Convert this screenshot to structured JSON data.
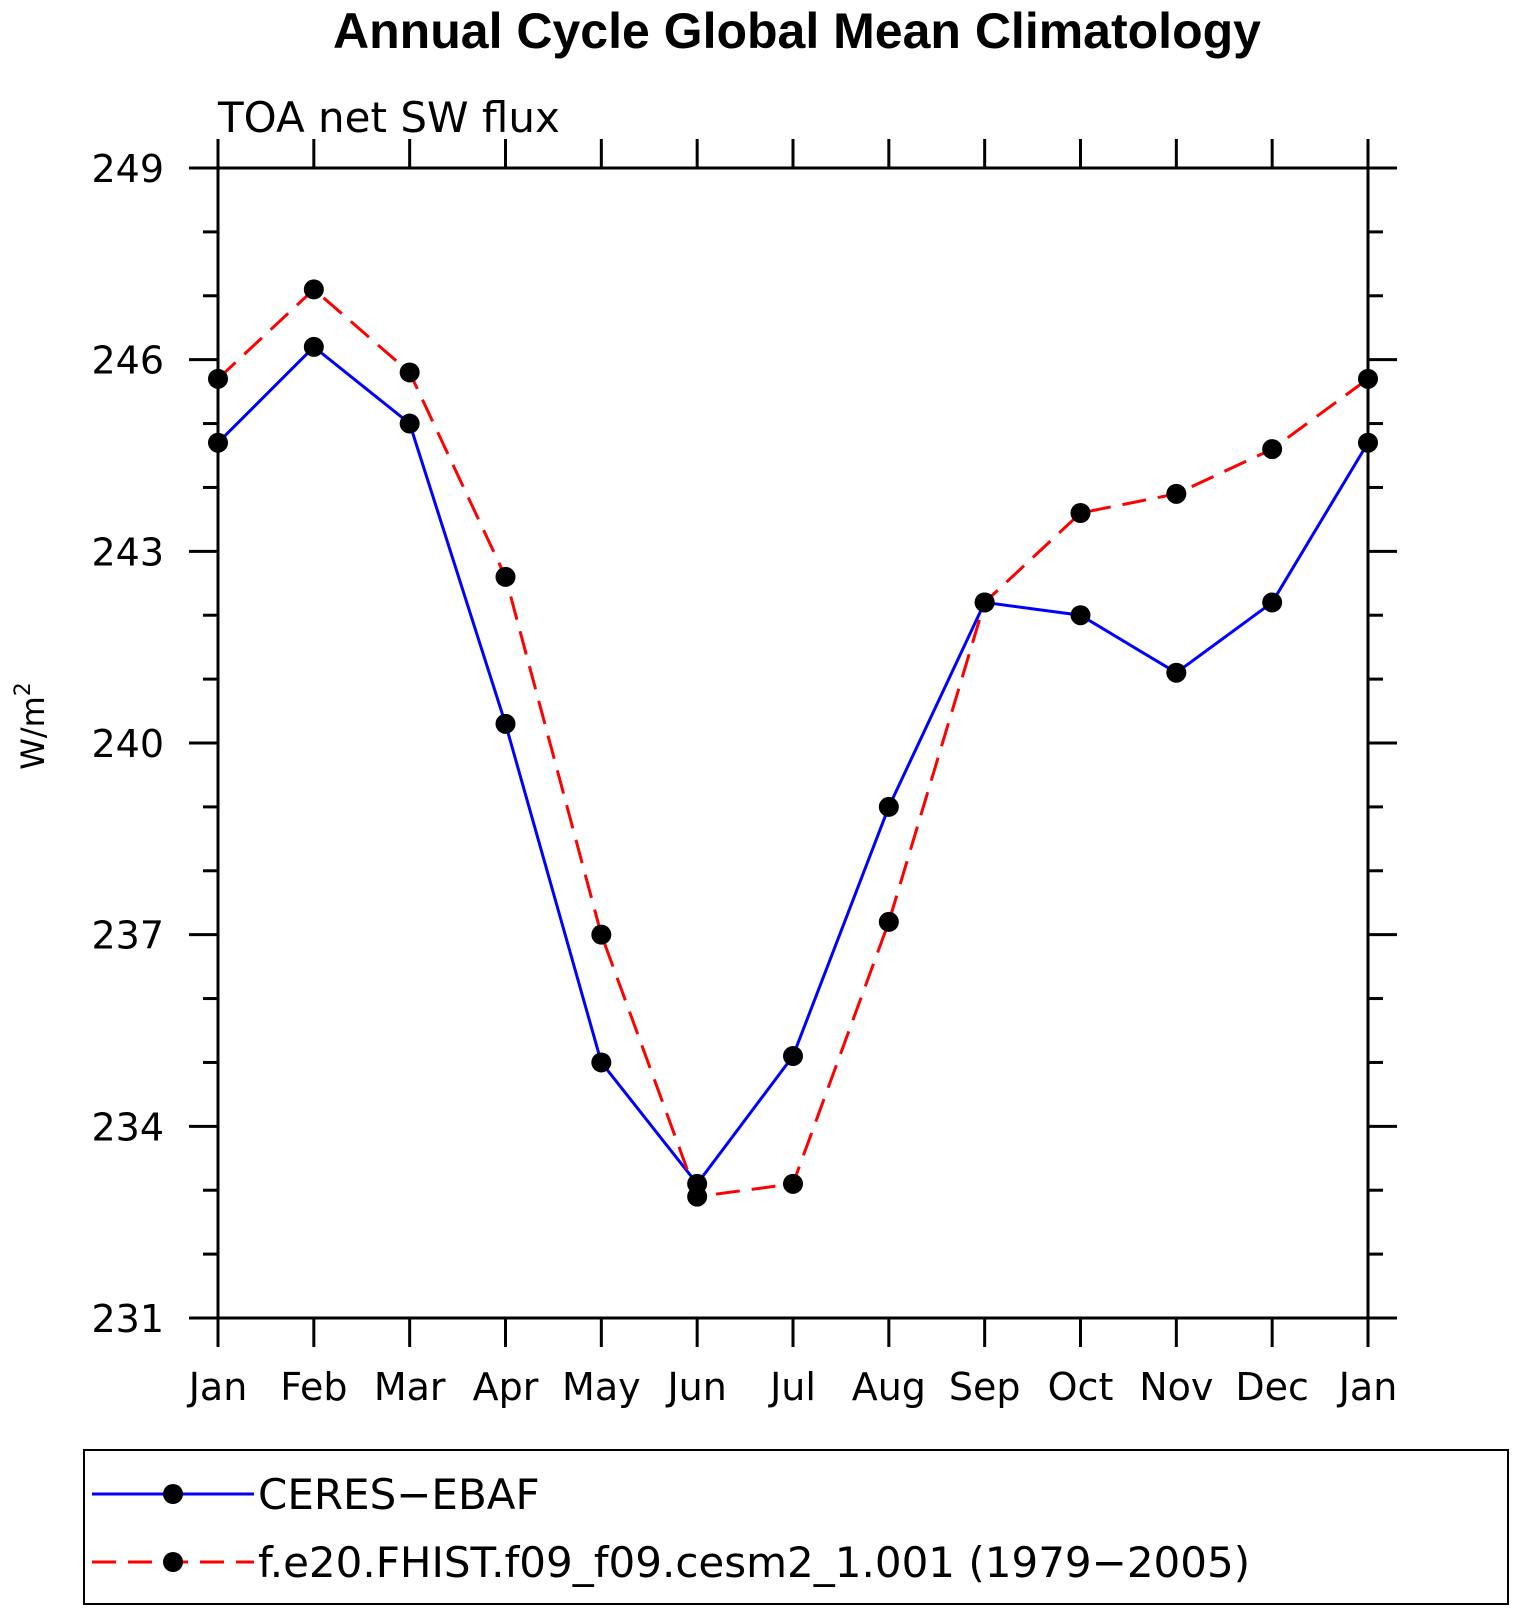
{
  "chart_data": {
    "type": "line",
    "title": "Annual Cycle Global Mean Climatology",
    "subtitle": "TOA net SW flux",
    "ylabel": "W/m",
    "ylabel_superscript": "2",
    "categories": [
      "Jan",
      "Feb",
      "Mar",
      "Apr",
      "May",
      "Jun",
      "Jul",
      "Aug",
      "Sep",
      "Oct",
      "Nov",
      "Dec",
      "Jan"
    ],
    "ylim": [
      231,
      249
    ],
    "yticks": [
      231,
      234,
      237,
      240,
      243,
      246,
      249
    ],
    "y_minor_step": 1,
    "legend_position": "bottom",
    "series": [
      {
        "name": "CERES−EBAF",
        "color": "#0000ff",
        "dash": "solid",
        "marker": "filled-circle",
        "values": [
          244.7,
          246.2,
          245.0,
          240.3,
          235.0,
          233.1,
          235.1,
          239.0,
          242.2,
          242.0,
          241.1,
          242.2,
          244.7
        ]
      },
      {
        "name": "f.e20.FHIST.f09_f09.cesm2_1.001 (1979−2005)",
        "color": "#ff0000",
        "dash": "dashed",
        "marker": "filled-circle",
        "values": [
          245.7,
          247.1,
          245.8,
          242.6,
          237.0,
          232.9,
          233.1,
          237.2,
          242.2,
          243.6,
          243.9,
          244.6,
          245.7
        ]
      }
    ]
  }
}
